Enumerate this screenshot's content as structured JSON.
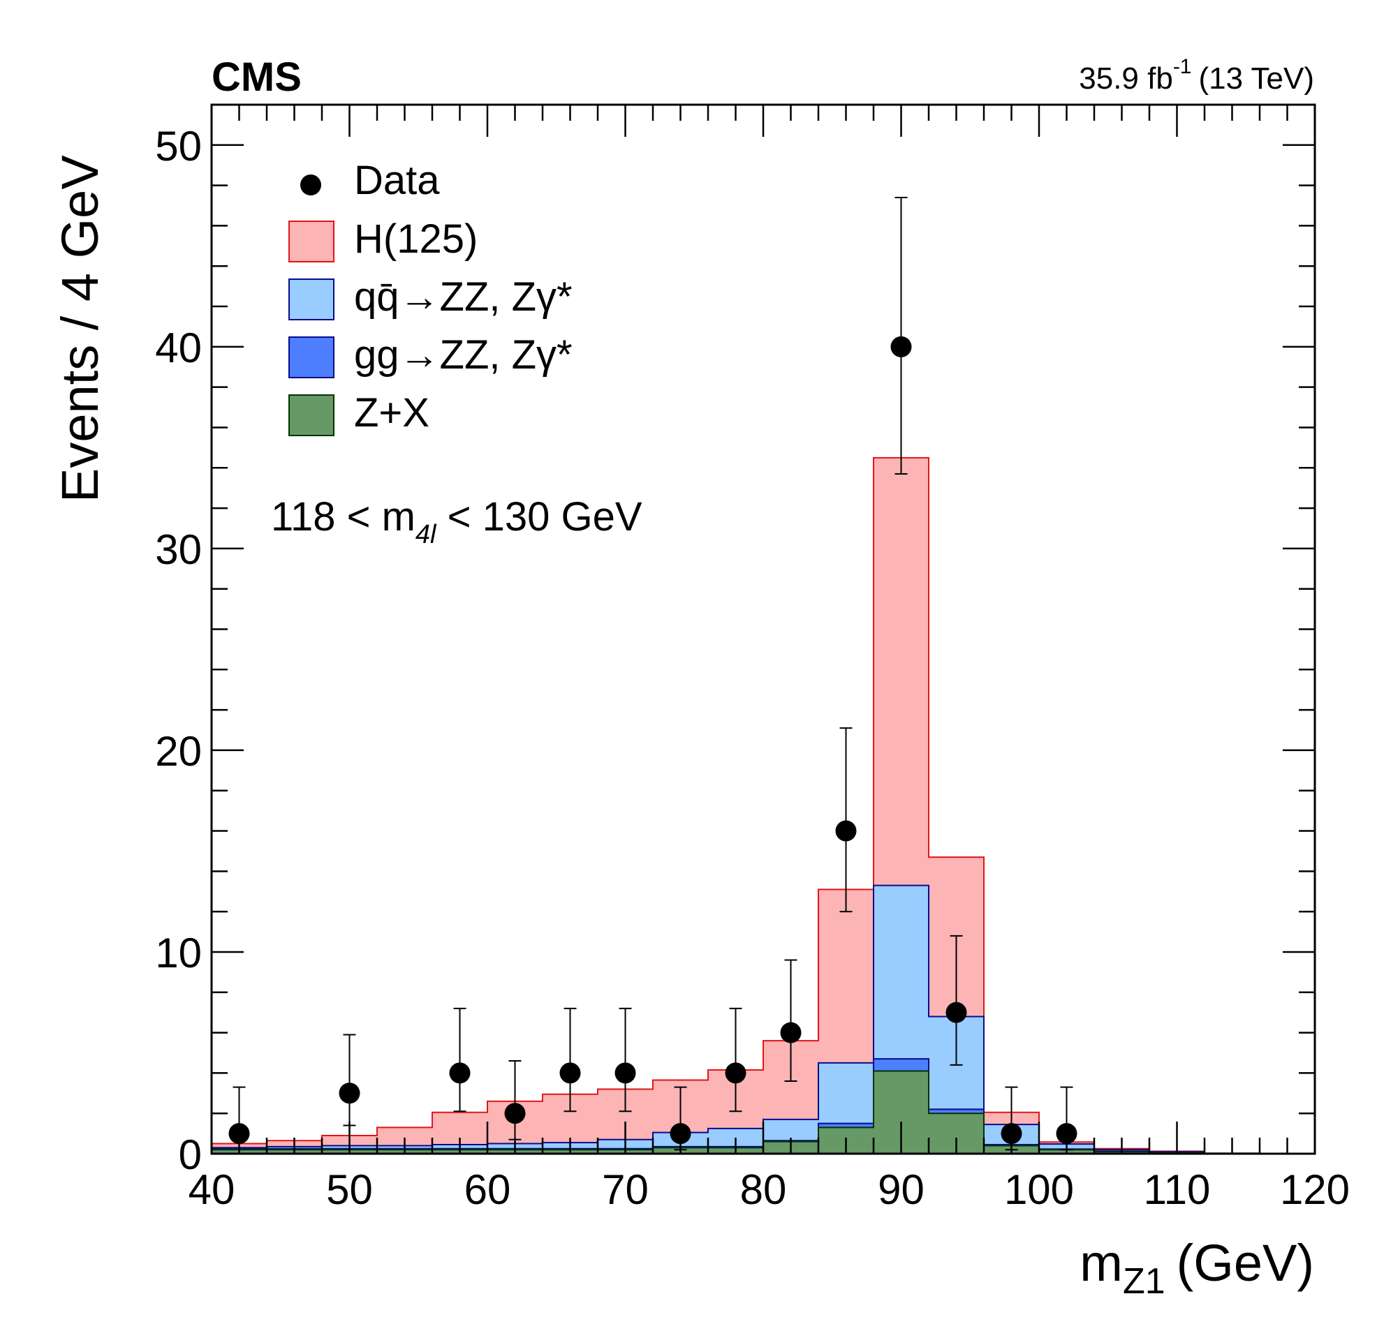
{
  "chart_data": {
    "type": "bar",
    "stacked": true,
    "experiment": "CMS",
    "lumi": {
      "value": "35.9 fb",
      "exponent": "-1",
      "energy": "(13 TeV)"
    },
    "xlabel": {
      "main": "m",
      "sub": "Z1",
      "unit": "(GeV)"
    },
    "ylabel": "Events / 4 GeV",
    "xlim": [
      40,
      120
    ],
    "ylim": [
      0,
      52
    ],
    "x_ticks": [
      "40",
      "50",
      "60",
      "70",
      "80",
      "90",
      "100",
      "110",
      "120"
    ],
    "y_ticks": [
      "0",
      "10",
      "20",
      "30",
      "40",
      "50"
    ],
    "annotation": {
      "pre": "118 < m",
      "sub": "4l",
      "post": " < 130 GeV"
    },
    "legend_position": "top-left",
    "legend": [
      {
        "label": "Data",
        "kind": "marker"
      },
      {
        "label": "H(125)",
        "kind": "box",
        "fill": "#fcb4b4",
        "stroke": "#e0161b"
      },
      {
        "label": "qq̄→ZZ, Zγ*",
        "kind": "box",
        "fill": "#99ccff",
        "stroke": "#0a0a8a"
      },
      {
        "label": "gg→ZZ, Zγ*",
        "kind": "box",
        "fill": "#4d7fff",
        "stroke": "#0a0a8a"
      },
      {
        "label": "Z+X",
        "kind": "box",
        "fill": "#669966",
        "stroke": "#003300"
      }
    ],
    "bin_edges": [
      40,
      44,
      48,
      52,
      56,
      60,
      64,
      68,
      72,
      76,
      80,
      84,
      88,
      92,
      96,
      100,
      104,
      108,
      112,
      116,
      120
    ],
    "series": [
      {
        "name": "Z+X",
        "fill": "#669966",
        "stroke": "#003300",
        "values": [
          0.2,
          0.2,
          0.2,
          0.2,
          0.2,
          0.2,
          0.2,
          0.2,
          0.3,
          0.3,
          0.6,
          1.3,
          4.1,
          2.0,
          0.4,
          0.2,
          0.1,
          0.05,
          0.0,
          0.0
        ]
      },
      {
        "name": "gg→ZZ, Zγ*",
        "fill": "#4d7fff",
        "stroke": "#0a0a8a",
        "values": [
          0.05,
          0.05,
          0.05,
          0.05,
          0.05,
          0.05,
          0.05,
          0.05,
          0.05,
          0.05,
          0.05,
          0.2,
          0.6,
          0.2,
          0.05,
          0.03,
          0.02,
          0.0,
          0.0,
          0.0
        ]
      },
      {
        "name": "qq̄→ZZ, Zγ*",
        "fill": "#99ccff",
        "stroke": "#0a0a8a",
        "values": [
          0.05,
          0.1,
          0.15,
          0.15,
          0.2,
          0.25,
          0.3,
          0.45,
          0.7,
          0.9,
          1.05,
          3.0,
          8.6,
          4.6,
          1.0,
          0.25,
          0.08,
          0.05,
          0.02,
          0.0
        ]
      },
      {
        "name": "H(125)",
        "fill": "#fcb4b4",
        "stroke": "#e0161b",
        "values": [
          0.2,
          0.3,
          0.5,
          0.9,
          1.6,
          2.1,
          2.4,
          2.5,
          2.6,
          2.9,
          3.9,
          8.6,
          21.2,
          7.9,
          0.6,
          0.1,
          0.05,
          0.02,
          0.0,
          0.0
        ]
      }
    ],
    "data_points": [
      {
        "x": 42,
        "y": 1,
        "err_low": 1,
        "err_high": 2.3
      },
      {
        "x": 50,
        "y": 3,
        "err_low": 1.6,
        "err_high": 2.9
      },
      {
        "x": 58,
        "y": 4,
        "err_low": 1.9,
        "err_high": 3.2
      },
      {
        "x": 62,
        "y": 2,
        "err_low": 1.3,
        "err_high": 2.6
      },
      {
        "x": 66,
        "y": 4,
        "err_low": 1.9,
        "err_high": 3.2
      },
      {
        "x": 70,
        "y": 4,
        "err_low": 1.9,
        "err_high": 3.2
      },
      {
        "x": 74,
        "y": 1,
        "err_low": 0.8,
        "err_high": 2.3
      },
      {
        "x": 78,
        "y": 4,
        "err_low": 1.9,
        "err_high": 3.2
      },
      {
        "x": 82,
        "y": 6,
        "err_low": 2.4,
        "err_high": 3.6
      },
      {
        "x": 86,
        "y": 16,
        "err_low": 4.0,
        "err_high": 5.1
      },
      {
        "x": 90,
        "y": 40,
        "err_low": 6.3,
        "err_high": 7.4
      },
      {
        "x": 94,
        "y": 7,
        "err_low": 2.6,
        "err_high": 3.8
      },
      {
        "x": 98,
        "y": 1,
        "err_low": 0.8,
        "err_high": 2.3
      },
      {
        "x": 102,
        "y": 1,
        "err_low": 0.8,
        "err_high": 2.3
      }
    ]
  }
}
